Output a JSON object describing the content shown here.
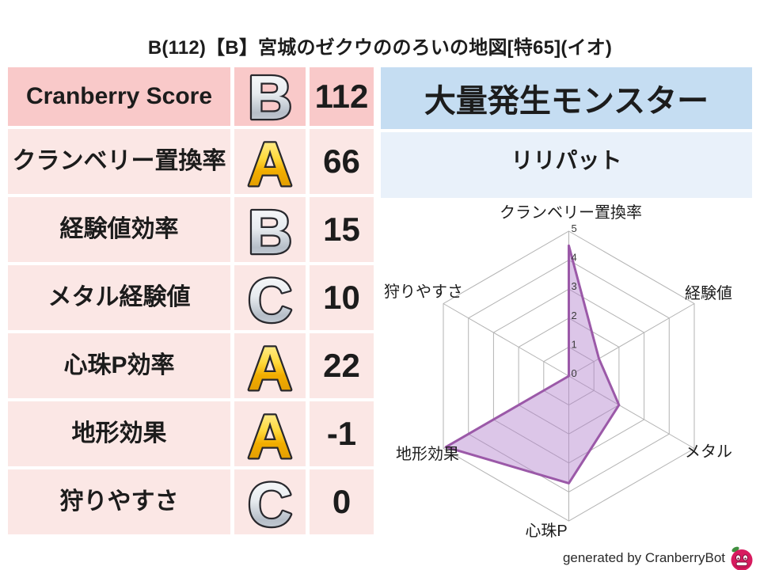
{
  "title": "B(112)【B】宮城のゼクウののろいの地図[特65](イオ)",
  "stats": {
    "rows": [
      {
        "label": "Cranberry Score",
        "grade": "B",
        "grade_color": "silver",
        "value": "112"
      },
      {
        "label": "クランベリー置換率",
        "grade": "A",
        "grade_color": "gold",
        "value": "66"
      },
      {
        "label": "経験値効率",
        "grade": "B",
        "grade_color": "silver",
        "value": "15"
      },
      {
        "label": "メタル経験値",
        "grade": "C",
        "grade_color": "silver",
        "value": "10"
      },
      {
        "label": "心珠P効率",
        "grade": "A",
        "grade_color": "gold",
        "value": "22"
      },
      {
        "label": "地形効果",
        "grade": "A",
        "grade_color": "gold",
        "value": "-1"
      },
      {
        "label": "狩りやすさ",
        "grade": "C",
        "grade_color": "silver",
        "value": "0"
      }
    ]
  },
  "monster": {
    "header": "大量発生モンスター",
    "name": "リリパット"
  },
  "chart_data": {
    "type": "radar",
    "title": "",
    "categories": [
      "クランベリー置換率",
      "経験値",
      "メタル",
      "心珠P",
      "地形効果",
      "狩りやすさ"
    ],
    "values": [
      4.5,
      1.2,
      2.0,
      3.7,
      4.9,
      0
    ],
    "ticks": [
      0,
      1,
      2,
      3,
      4,
      5
    ],
    "max": 5,
    "grid": "hexagonal rings with spokes",
    "legend": "none",
    "fill_color": "#b281cc",
    "fill_opacity": 0.45,
    "stroke_color": "#9b59a8",
    "grid_color": "#b3b3b3"
  },
  "credit": {
    "text": "generated by CranberryBot",
    "icon": "cranberry-mascot"
  },
  "colors": {
    "row_header_pink": "#f9c9c9",
    "row_pink": "#fbe7e5",
    "monster_header_blue": "#c5ddf2",
    "monster_value_blue": "#e9f1fa",
    "gold_grade": "#f0b400",
    "silver_grade": "#c8ccd4",
    "text": "#1c1c1c"
  }
}
